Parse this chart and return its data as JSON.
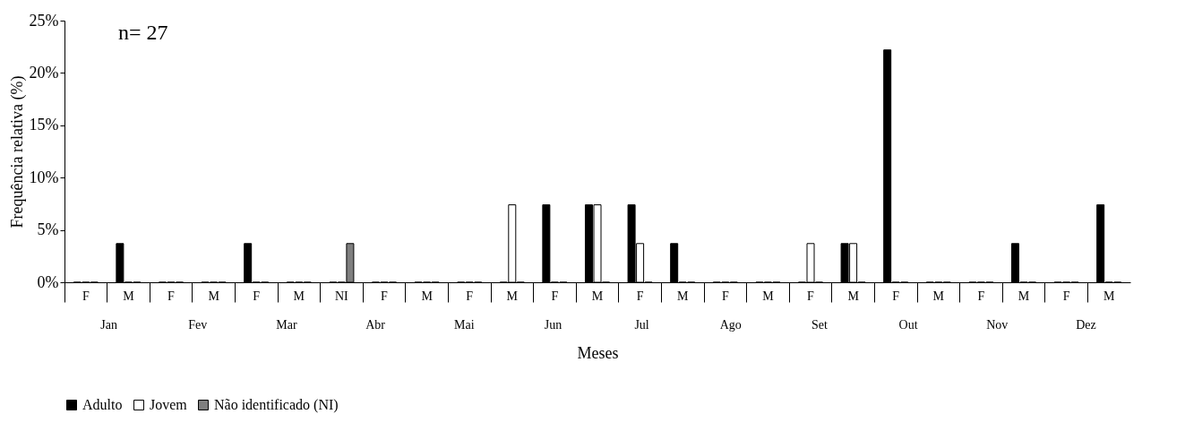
{
  "chart_data": {
    "type": "bar",
    "xlabel": "Meses",
    "ylabel": "Frequência relativa (%)",
    "categories": [
      "F",
      "M",
      "F",
      "M",
      "F",
      "M",
      "NI",
      "F",
      "M",
      "F",
      "M",
      "F",
      "M",
      "F",
      "M",
      "F",
      "M",
      "F",
      "M",
      "F",
      "M",
      "F",
      "M",
      "F",
      "M"
    ],
    "series": [
      {
        "name": "Adulto",
        "color": "#000000",
        "values": [
          0,
          3.7,
          0,
          0,
          3.7,
          0,
          0,
          0,
          0,
          0,
          0,
          7.4,
          7.4,
          7.4,
          3.7,
          0,
          0,
          0,
          3.7,
          22.2,
          0,
          0,
          3.7,
          0,
          7.4
        ]
      },
      {
        "name": "Jovem",
        "color": "#ffffff",
        "values": [
          0,
          0,
          0,
          0,
          0,
          0,
          0,
          0,
          0,
          0,
          7.4,
          0,
          7.4,
          3.7,
          0,
          0,
          0,
          3.7,
          3.7,
          0,
          0,
          0,
          0,
          0,
          0
        ]
      },
      {
        "name": "Não identificado (NI)",
        "color": "#7f7f7f",
        "values": [
          0,
          0,
          0,
          0,
          0,
          0,
          3.7,
          0,
          0,
          0,
          0,
          0,
          0,
          0,
          0,
          0,
          0,
          0,
          0,
          0,
          0,
          0,
          0,
          0,
          0
        ]
      }
    ],
    "ylim": [
      0,
      25
    ],
    "yticks": [
      {
        "value": 0,
        "label": "0%"
      },
      {
        "value": 5,
        "label": "5%"
      },
      {
        "value": 10,
        "label": "10%"
      },
      {
        "value": 15,
        "label": "15%"
      },
      {
        "value": 20,
        "label": "20%"
      },
      {
        "value": 25,
        "label": "25%"
      }
    ],
    "annotations": [
      "n= 27",
      "Jan",
      "Fev",
      "Mar",
      "Abr",
      "Mai",
      "Jun",
      "Jul",
      "Ago",
      "Set",
      "Out",
      "Nov",
      "Dez"
    ],
    "grid": false,
    "legend": "bottom"
  }
}
